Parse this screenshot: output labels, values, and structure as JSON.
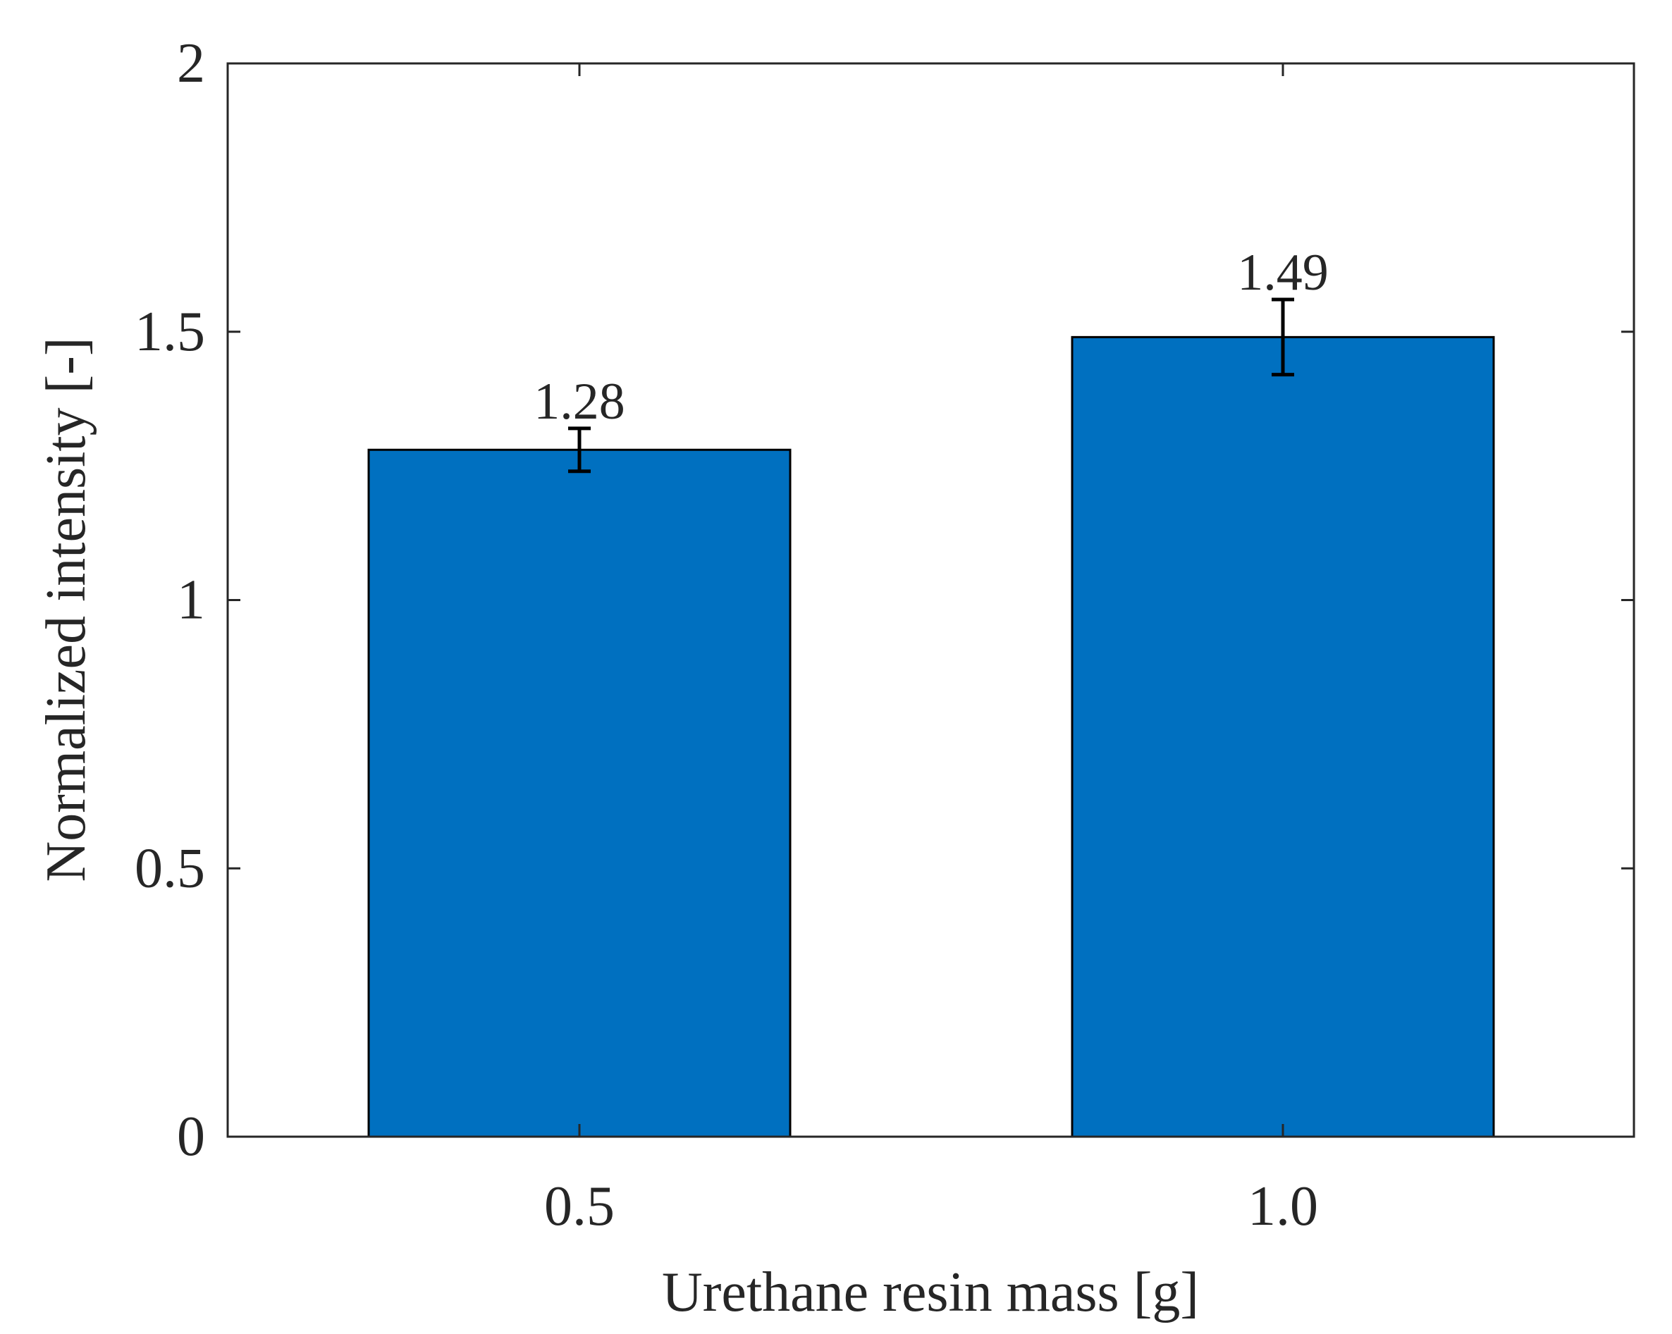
{
  "chart_data": {
    "type": "bar",
    "categories": [
      "0.5",
      "1.0"
    ],
    "values": [
      1.28,
      1.49
    ],
    "error_bars": [
      {
        "low": 1.24,
        "high": 1.32
      },
      {
        "low": 1.42,
        "high": 1.56
      }
    ],
    "data_labels": [
      "1.28",
      "1.49"
    ],
    "title": "",
    "xlabel": "Urethane resin mass [g]",
    "ylabel": "Normalized intensity [-]",
    "ylim": [
      0,
      2
    ],
    "yticks": [
      0,
      0.5,
      1,
      1.5,
      2
    ],
    "ytick_labels": [
      "0",
      "0.5",
      "1",
      "1.5",
      "2"
    ],
    "grid": false,
    "legend": "none",
    "colors": {
      "bar": "#0070C0",
      "bar_edge": "#000000",
      "axis": "#262626",
      "error_bar": "#000000"
    }
  }
}
